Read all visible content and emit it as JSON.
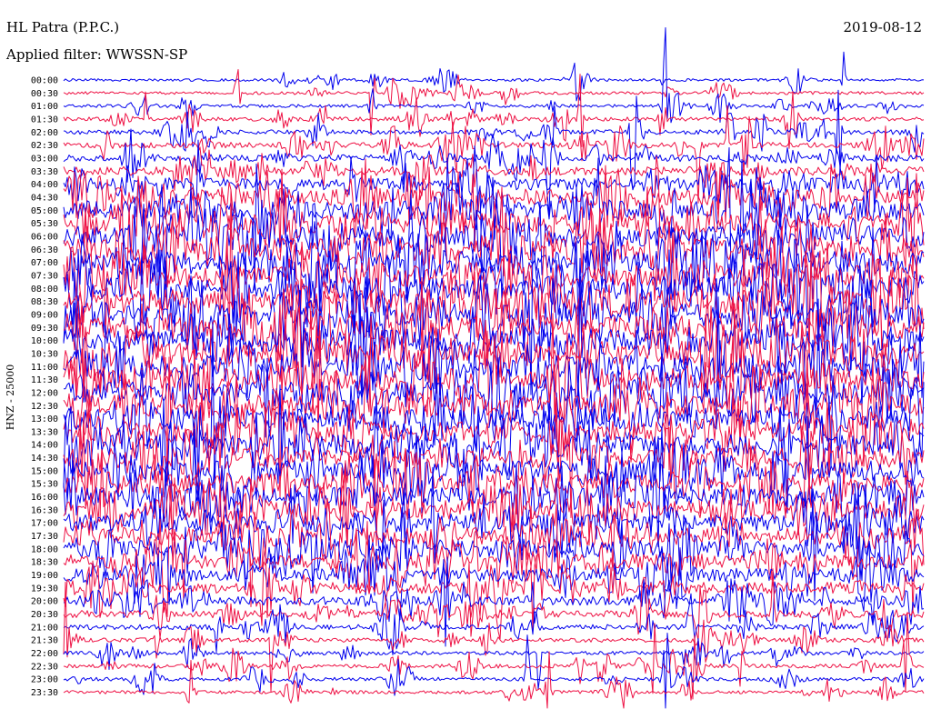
{
  "header": {
    "station_title": "HL Patra (P.P.C.)",
    "filter_text": "Applied filter: WWSSN-SP",
    "date": "2019-08-12",
    "channel_label": "HNZ - 25000"
  },
  "colors": {
    "trace_a": "#0000ee",
    "trace_b": "#ee1144",
    "text": "#000000",
    "background": "#ffffff"
  },
  "chart_data": {
    "type": "line",
    "title": "HL Patra (P.P.C.)",
    "subtitle": "Applied filter: WWSSN-SP",
    "date": "2019-08-12",
    "ylabel": "HNZ - 25000",
    "xlabel": "",
    "grid": false,
    "legend": "none",
    "row_interval_minutes": 30,
    "rows": [
      {
        "label": "00:00",
        "activity": 0.2
      },
      {
        "label": "00:30",
        "activity": 0.22
      },
      {
        "label": "01:00",
        "activity": 0.24
      },
      {
        "label": "01:30",
        "activity": 0.3
      },
      {
        "label": "02:00",
        "activity": 0.34
      },
      {
        "label": "02:30",
        "activity": 0.4
      },
      {
        "label": "03:00",
        "activity": 0.46
      },
      {
        "label": "03:30",
        "activity": 0.55
      },
      {
        "label": "04:00",
        "activity": 0.65
      },
      {
        "label": "04:30",
        "activity": 0.78
      },
      {
        "label": "05:00",
        "activity": 0.85
      },
      {
        "label": "05:30",
        "activity": 0.88
      },
      {
        "label": "06:00",
        "activity": 0.9
      },
      {
        "label": "06:30",
        "activity": 0.92
      },
      {
        "label": "07:00",
        "activity": 0.95
      },
      {
        "label": "07:30",
        "activity": 0.95
      },
      {
        "label": "08:00",
        "activity": 0.96
      },
      {
        "label": "08:30",
        "activity": 0.96
      },
      {
        "label": "09:00",
        "activity": 0.95
      },
      {
        "label": "09:30",
        "activity": 0.95
      },
      {
        "label": "10:00",
        "activity": 0.94
      },
      {
        "label": "10:30",
        "activity": 0.94
      },
      {
        "label": "11:00",
        "activity": 0.93
      },
      {
        "label": "11:30",
        "activity": 0.92
      },
      {
        "label": "12:00",
        "activity": 0.92
      },
      {
        "label": "12:30",
        "activity": 0.91
      },
      {
        "label": "13:00",
        "activity": 0.9
      },
      {
        "label": "13:30",
        "activity": 0.9
      },
      {
        "label": "14:00",
        "activity": 0.89
      },
      {
        "label": "14:30",
        "activity": 0.88
      },
      {
        "label": "15:00",
        "activity": 0.88
      },
      {
        "label": "15:30",
        "activity": 0.86
      },
      {
        "label": "16:00",
        "activity": 0.85
      },
      {
        "label": "16:30",
        "activity": 0.84
      },
      {
        "label": "17:00",
        "activity": 0.83
      },
      {
        "label": "17:30",
        "activity": 0.82
      },
      {
        "label": "18:00",
        "activity": 0.8
      },
      {
        "label": "18:30",
        "activity": 0.76
      },
      {
        "label": "19:00",
        "activity": 0.7
      },
      {
        "label": "19:30",
        "activity": 0.64
      },
      {
        "label": "20:00",
        "activity": 0.55
      },
      {
        "label": "20:30",
        "activity": 0.48
      },
      {
        "label": "21:00",
        "activity": 0.38
      },
      {
        "label": "21:30",
        "activity": 0.32
      },
      {
        "label": "22:00",
        "activity": 0.28
      },
      {
        "label": "22:30",
        "activity": 0.3
      },
      {
        "label": "23:00",
        "activity": 0.27
      },
      {
        "label": "23:30",
        "activity": 0.25
      }
    ]
  }
}
